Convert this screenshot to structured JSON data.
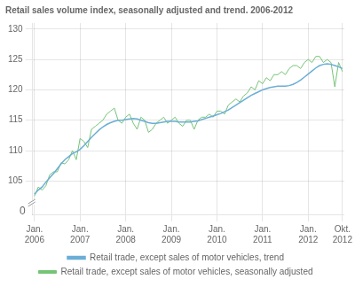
{
  "chart_data": {
    "type": "line",
    "title": "Retail sales volume index, seasonally adjusted and trend. 2006-2012",
    "categories": [
      "Jan.\n2006",
      null,
      null,
      null,
      null,
      null,
      null,
      null,
      null,
      null,
      null,
      null,
      "Jan.\n2007",
      null,
      null,
      null,
      null,
      null,
      null,
      null,
      null,
      null,
      null,
      null,
      "Jan.\n2008",
      null,
      null,
      null,
      null,
      null,
      null,
      null,
      null,
      null,
      null,
      null,
      "Jan.\n2009",
      null,
      null,
      null,
      null,
      null,
      null,
      null,
      null,
      null,
      null,
      null,
      "Jan.\n2010",
      null,
      null,
      null,
      null,
      null,
      null,
      null,
      null,
      null,
      null,
      null,
      "Jan.\n2011",
      null,
      null,
      null,
      null,
      null,
      null,
      null,
      null,
      null,
      null,
      null,
      "Jan.\n2012",
      null,
      null,
      null,
      null,
      null,
      null,
      null,
      null,
      "Okt.\n2012"
    ],
    "series": [
      {
        "name": "Retail trade, except sales of motor vehicles, trend",
        "color": "#6baed6",
        "values": [
          102.8,
          103.5,
          104.0,
          104.8,
          105.5,
          106.2,
          107.0,
          107.8,
          108.5,
          109.0,
          109.5,
          109.8,
          110.2,
          110.8,
          111.5,
          112.2,
          112.8,
          113.4,
          113.9,
          114.3,
          114.6,
          114.8,
          115.0,
          115.0,
          115.1,
          115.2,
          115.3,
          115.2,
          115.0,
          114.8,
          114.6,
          114.5,
          114.5,
          114.6,
          114.7,
          114.8,
          114.8,
          114.8,
          114.7,
          114.7,
          114.7,
          114.7,
          114.8,
          114.9,
          115.1,
          115.3,
          115.5,
          115.7,
          115.9,
          116.1,
          116.4,
          116.7,
          117.1,
          117.5,
          117.9,
          118.3,
          118.7,
          119.1,
          119.4,
          119.7,
          120.0,
          120.2,
          120.4,
          120.5,
          120.6,
          120.6,
          120.6,
          120.7,
          120.9,
          121.2,
          121.6,
          122.1,
          122.6,
          123.1,
          123.6,
          124.0,
          124.2,
          124.3,
          124.2,
          124.0,
          123.8,
          123.5
        ]
      },
      {
        "name": "Retail trade, except sales of motor vehicles, seasonally adjusted",
        "color": "#74c476",
        "values": [
          102.5,
          104.0,
          103.5,
          104.2,
          106.0,
          106.5,
          106.5,
          108.0,
          107.8,
          108.5,
          110.0,
          108.5,
          112.0,
          111.5,
          110.5,
          113.5,
          114.0,
          114.5,
          115.0,
          116.0,
          116.5,
          117.0,
          115.0,
          114.5,
          115.5,
          116.0,
          114.5,
          113.5,
          115.5,
          115.0,
          113.0,
          113.5,
          114.5,
          115.0,
          115.5,
          114.5,
          115.0,
          115.5,
          114.5,
          114.0,
          115.0,
          115.0,
          113.5,
          115.0,
          115.5,
          115.5,
          116.0,
          115.5,
          116.5,
          116.5,
          116.0,
          117.5,
          118.0,
          118.5,
          118.0,
          119.0,
          119.5,
          120.5,
          120.0,
          121.5,
          121.0,
          122.0,
          121.5,
          122.5,
          122.5,
          123.0,
          122.5,
          123.5,
          124.0,
          124.0,
          123.5,
          124.5,
          125.0,
          124.5,
          125.5,
          125.5,
          124.5,
          125.0,
          124.5,
          120.5,
          124.5,
          123.0
        ]
      }
    ],
    "ylim": [
      99.5,
      131
    ],
    "yticks": [
      105,
      110,
      115,
      120,
      125,
      130
    ],
    "grid": true,
    "legend": "bottom",
    "annotations": [
      "0"
    ]
  }
}
